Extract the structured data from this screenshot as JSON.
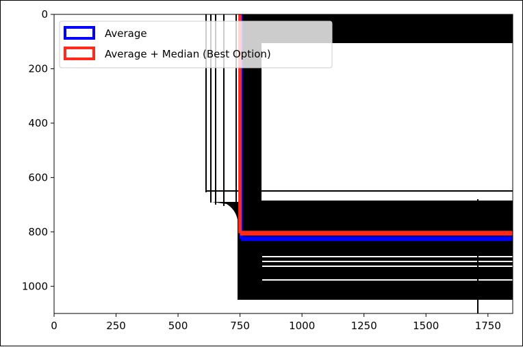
{
  "chart_data": {
    "type": "image",
    "title": "",
    "xlabel": "",
    "ylabel": "",
    "xlim": [
      0,
      1850
    ],
    "ylim": [
      1100,
      0
    ],
    "xticks": [
      0,
      250,
      500,
      750,
      1000,
      1250,
      1500,
      1750
    ],
    "yticks": [
      0,
      200,
      400,
      600,
      800,
      1000
    ],
    "xtick_labels": [
      "0",
      "250",
      "500",
      "750",
      "1000",
      "1250",
      "1500",
      "1750"
    ],
    "ytick_labels": [
      "0",
      "200",
      "400",
      "600",
      "800",
      "1000"
    ],
    "legend": {
      "placement": "upper-left",
      "entries": [
        {
          "label": "Average",
          "color": "#0000ff"
        },
        {
          "label": "Average + Median (Best Option)",
          "color": "#ff2a1a"
        }
      ]
    },
    "series": [
      {
        "name": "Average",
        "color": "#0000ff",
        "vertical_x": 755,
        "horizontal_y": 825,
        "x_range": [
          755,
          1850
        ]
      },
      {
        "name": "Average + Median (Best Option)",
        "color": "#ff2a1a",
        "vertical_x": 750,
        "horizontal_y": 805,
        "x_range": [
          750,
          1850
        ]
      }
    ]
  }
}
